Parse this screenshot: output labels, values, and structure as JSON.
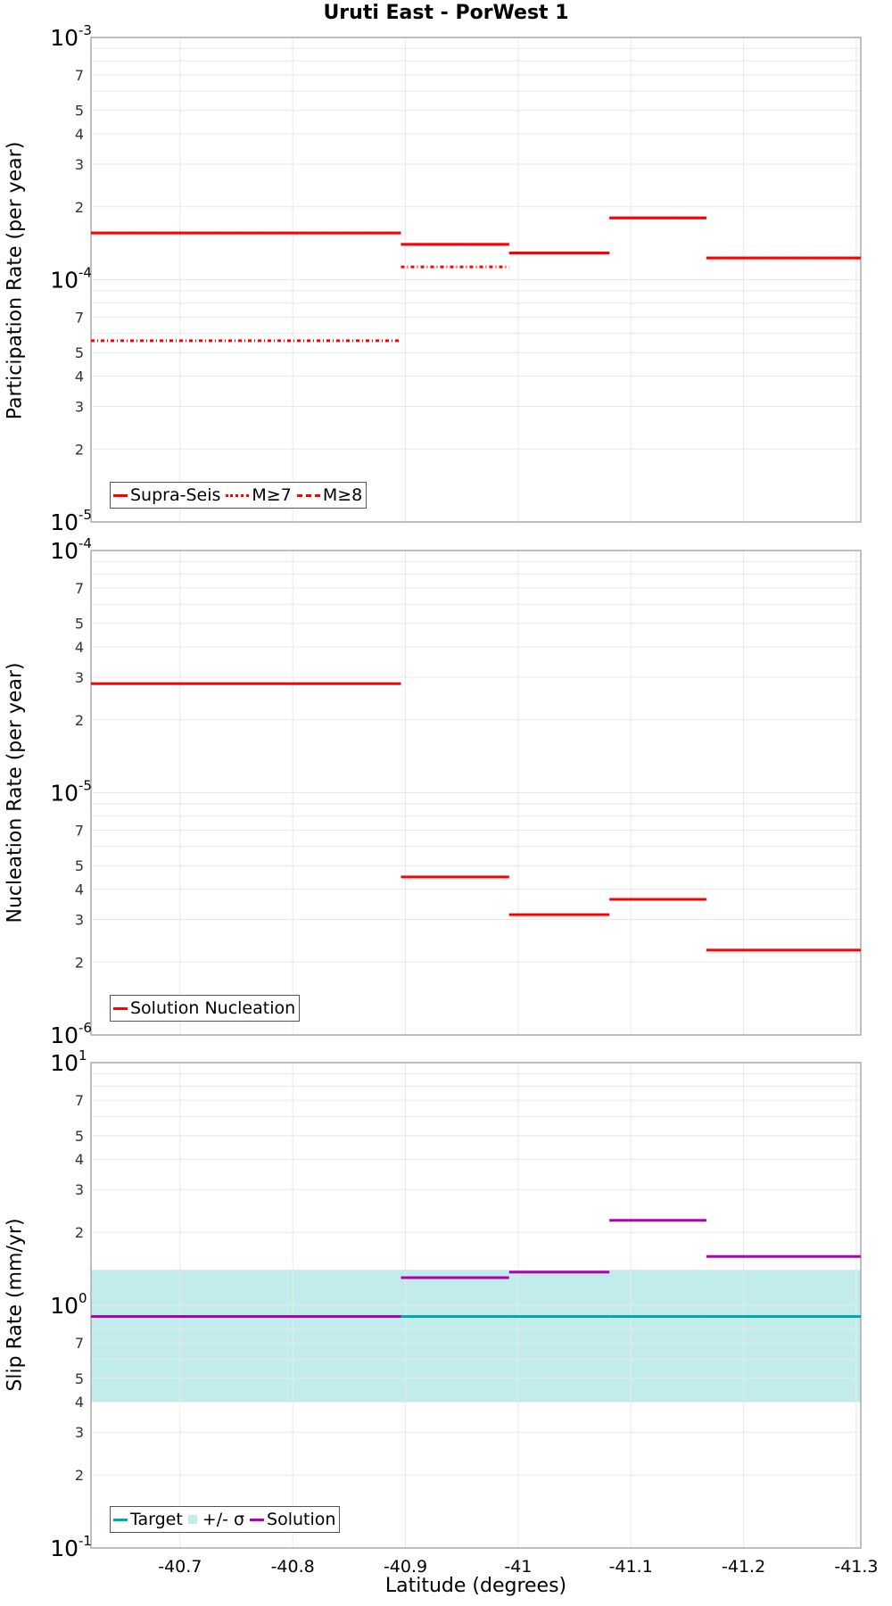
{
  "chart_data": {
    "title": "Uruti East - PorWest 1",
    "xlabel": "Latitude (degrees)",
    "x_ticks": [
      "-40.7",
      "-40.8",
      "-40.9",
      "-41",
      "-41.1",
      "-41.2",
      "-41.3"
    ],
    "x_tick_values": [
      -40.7,
      -40.8,
      -40.9,
      -41.0,
      -41.1,
      -41.2,
      -41.3
    ],
    "xlim": [
      -40.621,
      -41.304
    ],
    "segment_edges": [
      -40.621,
      -40.896,
      -40.992,
      -41.081,
      -41.167,
      -41.304
    ],
    "panels": [
      {
        "type": "line",
        "ylabel": "Participation Rate (per year)",
        "yscale": "log",
        "ylim": [
          1e-05,
          0.001
        ],
        "decade_labels": [
          {
            "base": "10",
            "exp": "-3"
          },
          {
            "base": "10",
            "exp": "-4"
          },
          {
            "base": "10",
            "exp": "-5"
          }
        ],
        "minor_tick_labels": [
          "7",
          "5",
          "4",
          "3",
          "2"
        ],
        "grid": true,
        "series": [
          {
            "name": "Supra-Seis",
            "style": "solid",
            "color": "#ff0000",
            "values": [
              0.000156,
              0.00014,
              0.000129,
              0.00018,
              0.000123
            ]
          },
          {
            "name": "M≥7",
            "style": "dotted",
            "color": "#ff0000",
            "values": [
              0.000156,
              0.00014,
              0.000129,
              0.00018,
              0.000123
            ]
          },
          {
            "name": "M≥8",
            "style": "dashdot",
            "color": "#ff0000",
            "values": [
              5.6e-05,
              0.000113,
              null,
              null,
              null
            ]
          }
        ],
        "legend": {
          "position": "lower-left"
        }
      },
      {
        "type": "line",
        "ylabel": "Nucleation Rate (per year)",
        "yscale": "log",
        "ylim": [
          1e-06,
          0.0001
        ],
        "decade_labels": [
          {
            "base": "10",
            "exp": "-4"
          },
          {
            "base": "10",
            "exp": "-5"
          },
          {
            "base": "10",
            "exp": "-6"
          }
        ],
        "minor_tick_labels": [
          "7",
          "5",
          "4",
          "3",
          "2"
        ],
        "grid": true,
        "series": [
          {
            "name": "Solution Nucleation",
            "style": "solid",
            "color": "#ff0000",
            "values": [
              2.82e-05,
              4.49e-06,
              3.14e-06,
              3.63e-06,
              2.24e-06
            ]
          }
        ],
        "legend": {
          "position": "lower-left"
        }
      },
      {
        "type": "line",
        "ylabel": "Slip Rate (mm/yr)",
        "yscale": "log",
        "ylim": [
          0.1,
          10
        ],
        "decade_labels": [
          {
            "base": "10",
            "exp": "1"
          },
          {
            "base": "10",
            "exp": "0"
          },
          {
            "base": "10",
            "exp": "-1"
          }
        ],
        "minor_tick_labels": [
          "7",
          "5",
          "4",
          "3",
          "2"
        ],
        "grid": true,
        "series": [
          {
            "name": "Target",
            "style": "solid",
            "color": "#00aaaa",
            "values": [
              0.9,
              0.9,
              0.9,
              0.9,
              0.9
            ]
          },
          {
            "name": "+/- σ",
            "style": "band",
            "color": "#c2ecec",
            "lower": 0.4,
            "upper": 1.4
          },
          {
            "name": "Solution",
            "style": "solid",
            "color": "#b000b0",
            "values": [
              0.9,
              1.3,
              1.37,
              2.24,
              1.59
            ]
          }
        ],
        "legend": {
          "position": "lower-left"
        }
      }
    ]
  },
  "colors": {
    "grid": "#e8e8e8",
    "axis": "#aaaaaa",
    "legend_border": "#555555"
  }
}
